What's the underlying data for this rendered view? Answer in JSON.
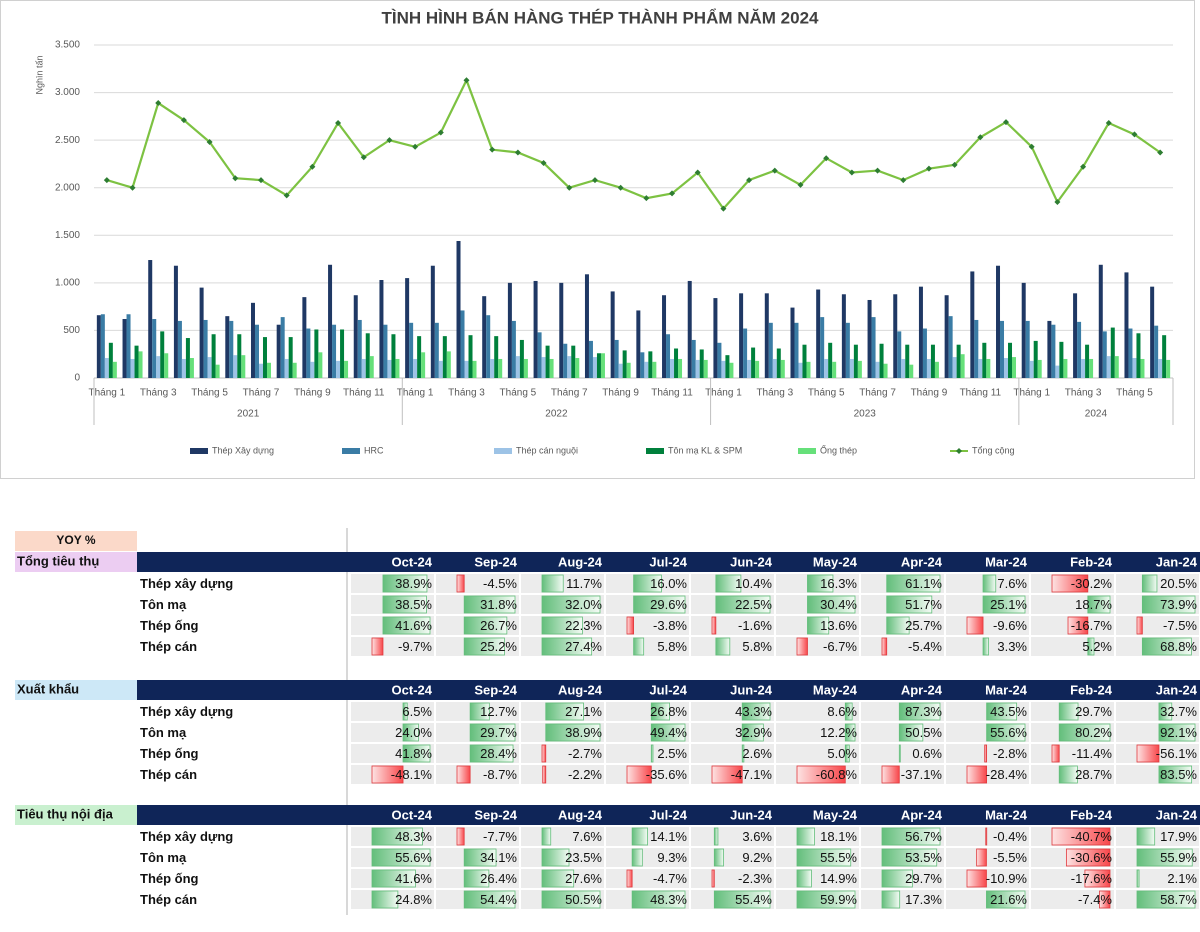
{
  "chart_data": {
    "type": "bar",
    "title": "TÌNH HÌNH BÁN HÀNG THÉP THÀNH PHẨM NĂM 2024",
    "y_label": "Nghìn tấn",
    "categories": [
      "Tháng 1",
      null,
      "Tháng 3",
      null,
      "Tháng 5",
      null,
      "Tháng 7",
      null,
      "Tháng 9",
      null,
      "Tháng 11",
      null,
      "Tháng 1",
      null,
      "Tháng 3",
      null,
      "Tháng 5",
      null,
      "Tháng 7",
      null,
      "Tháng 9",
      null,
      "Tháng 11",
      null,
      "Tháng 1",
      null,
      "Tháng 3",
      null,
      "Tháng 5",
      null,
      "Tháng 7",
      null,
      "Tháng 9",
      null,
      "Tháng 11",
      null,
      "Tháng 1",
      null,
      "Tháng 3",
      null,
      "Tháng 5",
      null
    ],
    "groups": [
      {
        "label": "2021",
        "size": 12
      },
      {
        "label": "2022",
        "size": 12
      },
      {
        "label": "2023",
        "size": 12
      },
      {
        "label": "2024",
        "size": 6
      }
    ],
    "ylim": [
      0,
      3500
    ],
    "yticks": [
      0,
      500,
      {
        "value": 1000,
        "label": "1.000"
      },
      {
        "value": 1500,
        "label": "1.500"
      },
      {
        "value": 2000,
        "label": "2.000"
      },
      {
        "value": 2500,
        "label": "2.500"
      },
      {
        "value": 3000,
        "label": "3.000"
      },
      {
        "value": 3500,
        "label": "3.500"
      }
    ],
    "grid": true,
    "series": [
      {
        "name": "Thép Xây dựng",
        "color": "#1f3864",
        "values": [
          660,
          620,
          1240,
          1180,
          950,
          650,
          790,
          560,
          850,
          1190,
          870,
          1030,
          1050,
          1180,
          1440,
          860,
          1000,
          1020,
          1000,
          1090,
          910,
          710,
          870,
          1020,
          840,
          890,
          890,
          740,
          930,
          880,
          820,
          880,
          960,
          870,
          1120,
          1180,
          1000,
          600,
          890,
          1190,
          1110,
          960
        ]
      },
      {
        "name": "HRC",
        "color": "#3a7ca5",
        "values": [
          670,
          670,
          620,
          600,
          610,
          600,
          560,
          640,
          520,
          560,
          610,
          560,
          580,
          580,
          710,
          660,
          600,
          480,
          360,
          390,
          400,
          270,
          460,
          400,
          370,
          520,
          580,
          580,
          640,
          580,
          640,
          490,
          520,
          650,
          610,
          600,
          600,
          560,
          590,
          490,
          520,
          550
        ]
      },
      {
        "name": "Thép cán nguội",
        "color": "#9dc3e6",
        "values": [
          210,
          200,
          230,
          200,
          220,
          240,
          150,
          200,
          170,
          180,
          200,
          190,
          200,
          180,
          180,
          200,
          230,
          220,
          230,
          220,
          150,
          170,
          200,
          190,
          180,
          190,
          200,
          160,
          200,
          200,
          170,
          200,
          200,
          220,
          200,
          210,
          180,
          130,
          200,
          230,
          210,
          200
        ]
      },
      {
        "name": "Tôn mạ KL & SPM",
        "color": "#00803c",
        "values": [
          370,
          340,
          490,
          420,
          460,
          460,
          430,
          430,
          510,
          510,
          470,
          460,
          440,
          440,
          450,
          440,
          400,
          340,
          340,
          260,
          290,
          280,
          310,
          300,
          240,
          320,
          310,
          350,
          370,
          350,
          360,
          350,
          350,
          350,
          370,
          370,
          390,
          380,
          350,
          530,
          470,
          450
        ]
      },
      {
        "name": "Ống thép",
        "color": "#66e07a",
        "values": [
          170,
          280,
          260,
          210,
          140,
          240,
          160,
          160,
          270,
          180,
          230,
          200,
          270,
          280,
          180,
          200,
          200,
          200,
          210,
          260,
          160,
          170,
          200,
          190,
          160,
          180,
          190,
          170,
          170,
          180,
          150,
          140,
          170,
          250,
          200,
          220,
          190,
          200,
          200,
          230,
          200,
          190
        ]
      },
      {
        "name": "Tổng cộng",
        "type": "line",
        "color": "#7dc242",
        "marker_color": "#2e7d32",
        "values": [
          2080,
          2000,
          2890,
          2710,
          2480,
          2100,
          2080,
          1920,
          2220,
          2680,
          2320,
          2500,
          2430,
          2580,
          3130,
          2400,
          2370,
          2260,
          2000,
          2080,
          2000,
          1890,
          1940,
          2160,
          1780,
          2080,
          2180,
          2030,
          2310,
          2160,
          2180,
          2080,
          2200,
          2240,
          2530,
          2690,
          2430,
          1850,
          2220,
          2680,
          2560,
          2370
        ]
      }
    ]
  },
  "table": {
    "title": "YOY %",
    "columns": [
      "Oct-24",
      "Sep-24",
      "Aug-24",
      "Jul-24",
      "Jun-24",
      "May-24",
      "Apr-24",
      "Mar-24",
      "Feb-24",
      "Jan-24"
    ],
    "sections": [
      {
        "label": "Tổng tiêu thụ",
        "color": "#eccdf2",
        "rows": [
          {
            "label": "Thép xây dựng",
            "values": [
              38.9,
              -4.5,
              11.7,
              16.0,
              10.4,
              16.3,
              61.1,
              7.6,
              -30.2,
              20.5
            ],
            "value_labels": [
              "38.9%",
              "-4.5%",
              "11.7%",
              "16.0%",
              "10.4%",
              "16.3%",
              "61.1%",
              "7.6%",
              "-30.2%",
              "20.5%"
            ]
          },
          {
            "label": "Tôn mạ",
            "values": [
              38.5,
              31.8,
              32.0,
              29.6,
              22.5,
              30.4,
              51.7,
              25.1,
              18.7,
              73.9
            ],
            "value_labels": [
              "38.5%",
              "31.8%",
              "32.0%",
              "29.6%",
              "22.5%",
              "30.4%",
              "51.7%",
              "25.1%",
              "18.7%",
              "73.9%"
            ]
          },
          {
            "label": "Thép ống",
            "values": [
              41.6,
              26.7,
              22.3,
              -3.8,
              -1.6,
              13.6,
              25.7,
              -9.6,
              -16.7,
              -7.5
            ],
            "value_labels": [
              "41.6%",
              "26.7%",
              "22.3%",
              "-3.8%",
              "-1.6%",
              "13.6%",
              "25.7%",
              "-9.6%",
              "-16.7%",
              "-7.5%"
            ]
          },
          {
            "label": "Thép cán",
            "values": [
              -9.7,
              25.2,
              27.4,
              5.8,
              5.8,
              -6.7,
              -5.4,
              3.3,
              5.2,
              68.8
            ],
            "value_labels": [
              "-9.7%",
              "25.2%",
              "27.4%",
              "5.8%",
              "5.8%",
              "-6.7%",
              "-5.4%",
              "3.3%",
              "5.2%",
              "68.8%"
            ]
          }
        ]
      },
      {
        "label": "Xuất khẩu",
        "color": "#cde8f7",
        "rows": [
          {
            "label": "Thép xây dựng",
            "values": [
              6.5,
              12.7,
              27.1,
              26.8,
              43.3,
              8.6,
              87.3,
              43.5,
              29.7,
              32.7
            ],
            "value_labels": [
              "6.5%",
              "12.7%",
              "27.1%",
              "26.8%",
              "43.3%",
              "8.6%",
              "87.3%",
              "43.5%",
              "29.7%",
              "32.7%"
            ]
          },
          {
            "label": "Tôn mạ",
            "values": [
              24.0,
              29.7,
              38.9,
              49.4,
              32.9,
              12.2,
              50.5,
              55.6,
              80.2,
              92.1
            ],
            "value_labels": [
              "24.0%",
              "29.7%",
              "38.9%",
              "49.4%",
              "32.9%",
              "12.2%",
              "50.5%",
              "55.6%",
              "80.2%",
              "92.1%"
            ]
          },
          {
            "label": "Thép ống",
            "values": [
              41.8,
              28.4,
              -2.7,
              2.5,
              2.6,
              5.0,
              0.6,
              -2.8,
              -11.4,
              -56.1
            ],
            "value_labels": [
              "41.8%",
              "28.4%",
              "-2.7%",
              "2.5%",
              "2.6%",
              "5.0%",
              "0.6%",
              "-2.8%",
              "-11.4%",
              "-56.1%"
            ]
          },
          {
            "label": "Thép cán",
            "values": [
              -48.1,
              -8.7,
              -2.2,
              -35.6,
              -47.1,
              -60.8,
              -37.1,
              -28.4,
              28.7,
              83.5
            ],
            "value_labels": [
              "-48.1%",
              "-8.7%",
              "-2.2%",
              "-35.6%",
              "-47.1%",
              "-60.8%",
              "-37.1%",
              "-28.4%",
              "28.7%",
              "83.5%"
            ]
          }
        ]
      },
      {
        "label": "Tiêu thụ nội địa",
        "color": "#c9f0cf",
        "rows": [
          {
            "label": "Thép xây dựng",
            "values": [
              48.3,
              -7.7,
              7.6,
              14.1,
              3.6,
              18.1,
              56.7,
              -0.4,
              -40.7,
              17.9
            ],
            "value_labels": [
              "48.3%",
              "-7.7%",
              "7.6%",
              "14.1%",
              "3.6%",
              "18.1%",
              "56.7%",
              "-0.4%",
              "-40.7%",
              "17.9%"
            ]
          },
          {
            "label": "Tôn mạ",
            "values": [
              55.6,
              34.1,
              23.5,
              9.3,
              9.2,
              55.5,
              53.5,
              -5.5,
              -30.6,
              55.9
            ],
            "value_labels": [
              "55.6%",
              "34.1%",
              "23.5%",
              "9.3%",
              "9.2%",
              "55.5%",
              "53.5%",
              "-5.5%",
              "-30.6%",
              "55.9%"
            ]
          },
          {
            "label": "Thép ống",
            "values": [
              41.6,
              26.4,
              27.6,
              -4.7,
              -2.3,
              14.9,
              29.7,
              -10.9,
              -17.6,
              2.1
            ],
            "value_labels": [
              "41.6%",
              "26.4%",
              "27.6%",
              "-4.7%",
              "-2.3%",
              "14.9%",
              "29.7%",
              "-10.9%",
              "-17.6%",
              "2.1%"
            ]
          },
          {
            "label": "Thép cán",
            "values": [
              24.8,
              54.4,
              50.5,
              48.3,
              55.4,
              59.9,
              17.3,
              21.6,
              -7.4,
              58.7
            ],
            "value_labels": [
              "24.8%",
              "54.4%",
              "50.5%",
              "48.3%",
              "55.4%",
              "59.9%",
              "17.3%",
              "21.6%",
              "-7.4%",
              "58.7%"
            ]
          }
        ]
      }
    ]
  }
}
